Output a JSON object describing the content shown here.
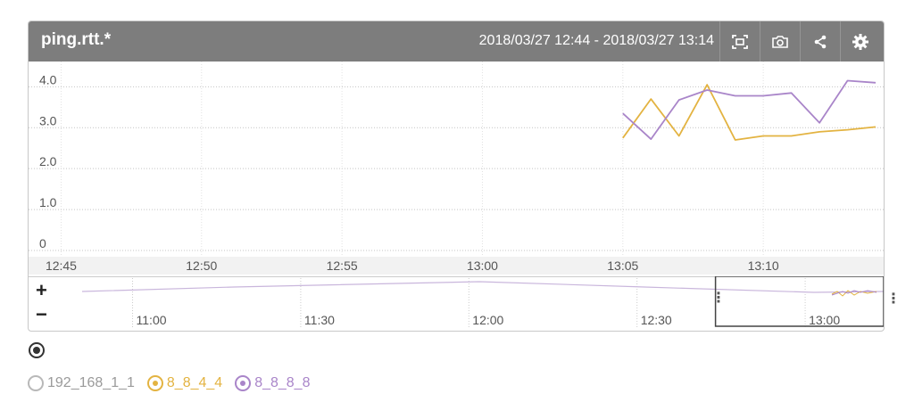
{
  "panel": {
    "title": "ping.rtt.*",
    "time_range": "2018/03/27 12:44 - 2018/03/27 13:14",
    "header_bg": "#7d7d7d",
    "tools": [
      {
        "name": "fit-to-screen-icon"
      },
      {
        "name": "camera-icon"
      },
      {
        "name": "share-icon"
      },
      {
        "name": "gear-icon"
      }
    ]
  },
  "chart_data": {
    "type": "line",
    "x_ticks": [
      "12:45",
      "12:50",
      "12:55",
      "13:00",
      "13:05",
      "13:10"
    ],
    "y_ticks": [
      "0",
      "1.0",
      "2.0",
      "3.0",
      "4.0"
    ],
    "ylim": [
      0,
      4.4
    ],
    "xlim": [
      "12:44",
      "13:14"
    ],
    "grid": true,
    "series": [
      {
        "name": "8_8_4_4",
        "color": "#e3b341",
        "x": [
          "13:05",
          "13:06",
          "13:07",
          "13:08",
          "13:09",
          "13:10",
          "13:11",
          "13:12",
          "13:13",
          "13:14"
        ],
        "y": [
          2.75,
          3.7,
          2.8,
          4.05,
          2.7,
          2.8,
          2.8,
          2.9,
          2.95,
          3.02
        ]
      },
      {
        "name": "8_8_8_8",
        "color": "#a985c9",
        "x": [
          "13:05",
          "13:06",
          "13:07",
          "13:08",
          "13:09",
          "13:10",
          "13:11",
          "13:12",
          "13:13",
          "13:14"
        ],
        "y": [
          3.35,
          2.72,
          3.68,
          3.92,
          3.78,
          3.78,
          3.85,
          3.12,
          4.15,
          4.1
        ]
      }
    ]
  },
  "navigator": {
    "ticks": [
      "11:00",
      "11:30",
      "12:00",
      "12:30",
      "13:00"
    ],
    "zoom_in": "+",
    "zoom_out": "−",
    "handle": "⋮"
  },
  "legend": {
    "items": [
      {
        "label": "192_168_1_1",
        "color": "#b8b8b8",
        "selected": false
      },
      {
        "label": "8_8_4_4",
        "color": "#e3b341",
        "selected": true
      },
      {
        "label": "8_8_8_8",
        "color": "#a985c9",
        "selected": true
      }
    ]
  }
}
